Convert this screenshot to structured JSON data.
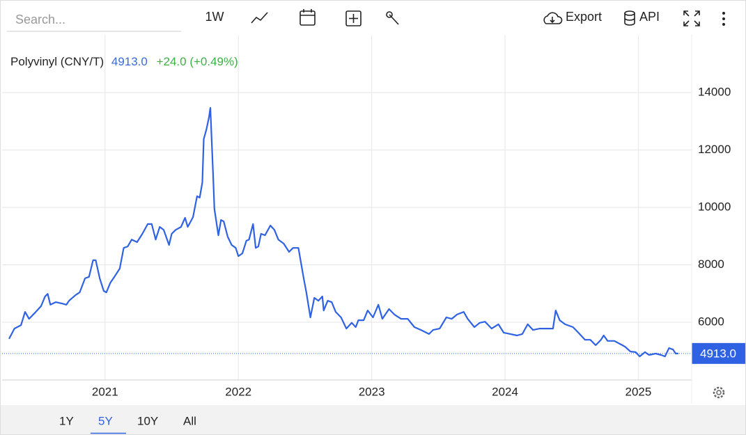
{
  "toolbar": {
    "search_placeholder": "Search...",
    "interval": "1W",
    "export": "Export",
    "api": "API"
  },
  "header": {
    "change": "+24.0 (+0.49%)"
  },
  "ranges": [
    "1Y",
    "5Y",
    "10Y",
    "All"
  ],
  "active_range": "5Y",
  "chart_data": {
    "type": "line",
    "x": [
      2020.28,
      2020.32,
      2020.37,
      2020.4,
      2020.43,
      2020.47,
      2020.52,
      2020.55,
      2020.57,
      2020.59,
      2020.63,
      2020.68,
      2020.71,
      2020.73,
      2020.78,
      2020.81,
      2020.85,
      2020.88,
      2020.91,
      2020.93,
      2020.96,
      2020.99,
      2021.01,
      2021.04,
      2021.07,
      2021.11,
      2021.14,
      2021.17,
      2021.2,
      2021.24,
      2021.28,
      2021.32,
      2021.35,
      2021.38,
      2021.41,
      2021.44,
      2021.48,
      2021.5,
      2021.53,
      2021.57,
      2021.6,
      2021.62,
      2021.66,
      2021.69,
      2021.71,
      2021.73,
      2021.74,
      2021.76,
      2021.78,
      2021.79,
      2021.81,
      2021.82,
      2021.85,
      2021.87,
      2021.89,
      2021.92,
      2021.95,
      2021.98,
      2022.0,
      2022.03,
      2022.06,
      2022.08,
      2022.11,
      2022.13,
      2022.15,
      2022.17,
      2022.2,
      2022.24,
      2022.27,
      2022.3,
      2022.34,
      2022.38,
      2022.41,
      2022.45,
      2022.49,
      2022.51,
      2022.54,
      2022.57,
      2022.6,
      2022.63,
      2022.64,
      2022.67,
      2022.7,
      2022.73,
      2022.77,
      2022.81,
      2022.85,
      2022.88,
      2022.9,
      2022.94,
      2022.97,
      2023.01,
      2023.05,
      2023.08,
      2023.13,
      2023.17,
      2023.22,
      2023.27,
      2023.32,
      2023.37,
      2023.43,
      2023.46,
      2023.51,
      2023.56,
      2023.6,
      2023.64,
      2023.69,
      2023.72,
      2023.77,
      2023.81,
      2023.85,
      2023.9,
      2023.95,
      2023.99,
      2024.04,
      2024.09,
      2024.13,
      2024.17,
      2024.21,
      2024.26,
      2024.31,
      2024.36,
      2024.38,
      2024.41,
      2024.45,
      2024.51,
      2024.55,
      2024.6,
      2024.64,
      2024.68,
      2024.72,
      2024.74,
      2024.77,
      2024.82,
      2024.86,
      2024.9,
      2024.94,
      2024.98,
      2025.01,
      2025.05,
      2025.08,
      2025.13,
      2025.17,
      2025.2,
      2025.23,
      2025.26,
      2025.28,
      2025.3
    ],
    "series": [
      {
        "name": "Polyvinyl (CNY/T)",
        "color": "#2f62e3",
        "values": [
          5420,
          5780,
          5900,
          6360,
          6120,
          6310,
          6560,
          6900,
          6990,
          6610,
          6700,
          6650,
          6610,
          6750,
          6950,
          7040,
          7530,
          7580,
          8160,
          8160,
          7530,
          7090,
          7040,
          7380,
          7580,
          7870,
          8590,
          8640,
          8880,
          8790,
          9080,
          9420,
          9420,
          8880,
          9320,
          9220,
          8690,
          9080,
          9220,
          9320,
          9640,
          9320,
          9660,
          10390,
          10340,
          10870,
          12380,
          12710,
          13150,
          13470,
          11160,
          9950,
          9030,
          9560,
          9510,
          8980,
          8690,
          8590,
          8300,
          8400,
          8840,
          8880,
          9420,
          8590,
          8640,
          9080,
          9030,
          9370,
          9220,
          8880,
          8740,
          8450,
          8590,
          8590,
          7530,
          7040,
          6170,
          6850,
          6750,
          6900,
          6410,
          6750,
          6700,
          6360,
          6170,
          5780,
          5980,
          5830,
          6070,
          6070,
          6410,
          6170,
          6610,
          6120,
          6460,
          6270,
          6120,
          6120,
          5830,
          5730,
          5590,
          5730,
          5780,
          6170,
          6120,
          6270,
          6360,
          6120,
          5830,
          5980,
          6020,
          5780,
          5930,
          5640,
          5590,
          5540,
          5590,
          5930,
          5730,
          5780,
          5780,
          5780,
          6410,
          6070,
          5930,
          5830,
          5640,
          5390,
          5390,
          5200,
          5390,
          5540,
          5350,
          5350,
          5250,
          5150,
          4980,
          4960,
          4810,
          4960,
          4860,
          4910,
          4860,
          4810,
          5100,
          5050,
          4910,
          4913
        ]
      }
    ],
    "last_value": {
      "value": 4913,
      "label": "4913.0"
    },
    "xlim": [
      2020.28,
      2025.4
    ],
    "xticks": [
      2021,
      2022,
      2023,
      2024,
      2025
    ],
    "ylim": [
      4000,
      16000
    ],
    "yticks": [
      6000,
      8000,
      10000,
      12000,
      14000
    ],
    "grid": true
  }
}
